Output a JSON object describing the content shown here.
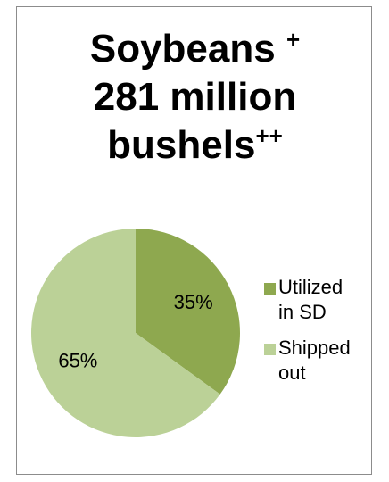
{
  "chart_data": {
    "type": "pie",
    "title_main": "Soybeans",
    "title_main_sup": "+",
    "title_amount": "281 million",
    "title_unit": "bushels",
    "title_unit_sup": "++",
    "slices": [
      {
        "label": "Utilized in SD",
        "legend_line1": "Utilized",
        "legend_line2": "in SD",
        "value": 35,
        "display": "35%",
        "color": "#8ea84f"
      },
      {
        "label": "Shipped out",
        "legend_line1": "Shipped",
        "legend_line2": "out",
        "value": 65,
        "display": "65%",
        "color": "#bbd197"
      }
    ],
    "start_angle_deg": 0,
    "direction": "clockwise",
    "legend_position": "right"
  }
}
